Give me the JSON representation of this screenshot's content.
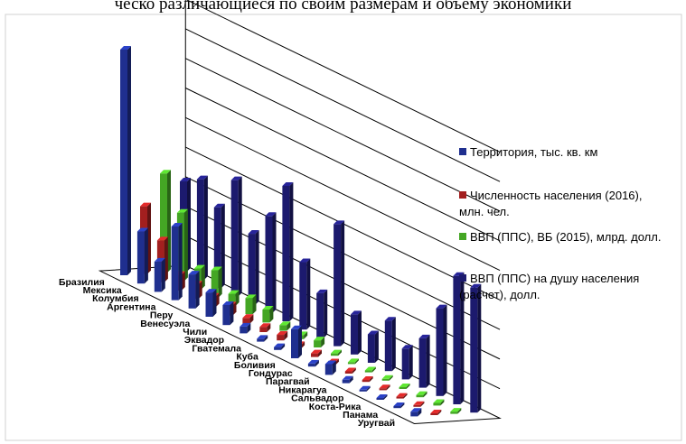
{
  "caption": "ческо различающиеся по своим размерам и объему экономики",
  "chart_data": {
    "type": "bar",
    "title": "",
    "categories": [
      "Бразилия",
      "Мексика",
      "Колумбия",
      "Аргентина",
      "Перу",
      "Венесуэла",
      "Чили",
      "Эквадор",
      "Гватемала",
      "Куба",
      "Боливия",
      "Гондурас",
      "Парагвай",
      "Никарагуа",
      "Сальвадор",
      "Коста-Рика",
      "Панама",
      "Уругвай"
    ],
    "series": [
      {
        "name": "Территория, тыс. кв. км",
        "color": "#1f2f8f",
        "values": [
          8516,
          1964,
          1142,
          2780,
          1285,
          916,
          756,
          256,
          109,
          110,
          1099,
          112,
          407,
          130,
          21,
          51,
          75,
          176
        ]
      },
      {
        "name": "Численность населения (2016), млн. чел.",
        "color": "#a31f1f",
        "values": [
          207,
          128,
          48,
          44,
          32,
          31,
          18,
          16,
          17,
          11,
          11,
          9,
          7,
          6,
          6,
          5,
          4,
          3
        ]
      },
      {
        "name": "ВВП (ППС), ВБ (2015), млрд. долл.",
        "color": "#44a624",
        "values": [
          3200,
          2200,
          670,
          880,
          390,
          520,
          420,
          185,
          130,
          230,
          75,
          40,
          60,
          32,
          50,
          75,
          85,
          73
        ]
      },
      {
        "name": "ВВП (ППС) на душу населения (расчет), долл.",
        "color": "#1c1a6e",
        "values": [
          15500,
          17300,
          13900,
          20000,
          12200,
          16700,
          23300,
          11600,
          7700,
          21000,
          6900,
          4900,
          8700,
          5300,
          8500,
          15100,
          22100,
          21500
        ]
      }
    ],
    "legend_position": "right",
    "grid": true
  }
}
